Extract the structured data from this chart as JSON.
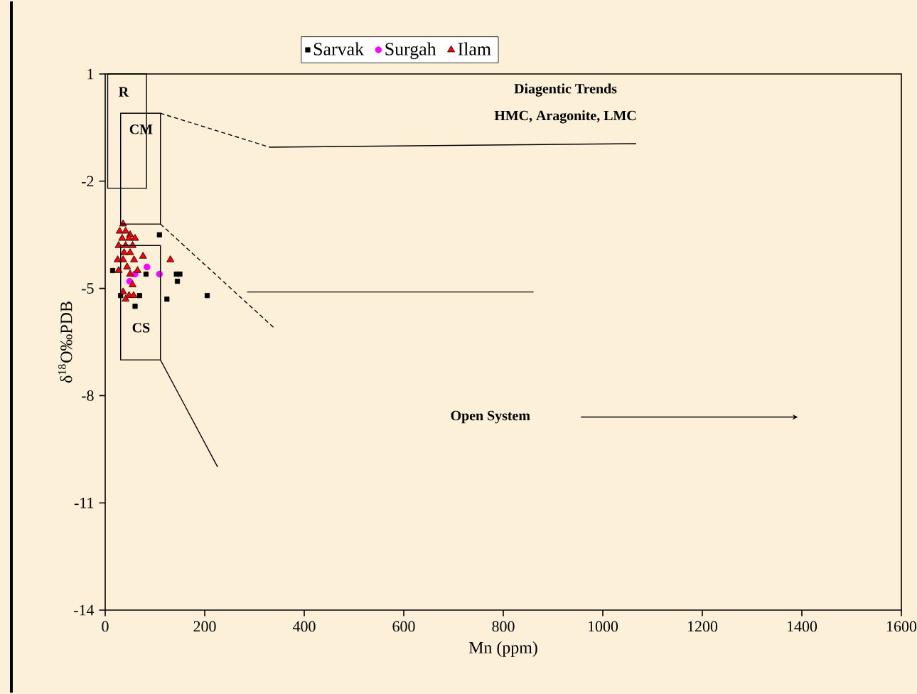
{
  "chart_data": {
    "type": "scatter",
    "xlabel": "Mn (ppm)",
    "ylabel": "δ$^{18}$O‰PDB",
    "xlim": [
      0,
      1600
    ],
    "xticks": [
      0,
      200,
      400,
      600,
      800,
      1000,
      1200,
      1400,
      1600
    ],
    "ylim": [
      -14,
      1
    ],
    "yticks": [
      -14,
      -11,
      -8,
      -5,
      -2,
      1
    ],
    "grid": false,
    "legend": "top",
    "series": [
      {
        "name": "Sarvak",
        "color": "#000000",
        "marker": "square",
        "x": [
          109,
          15,
          150,
          143,
          145,
          31,
          69,
          124,
          205,
          60,
          82
        ],
        "values": [
          -3.5,
          -4.5,
          -4.6,
          -4.6,
          -4.8,
          -5.2,
          -5.2,
          -5.3,
          -5.2,
          -5.5,
          -4.6
        ]
      },
      {
        "name": "Surgah",
        "color": "#ff00ff",
        "marker": "circle",
        "x": [
          84,
          109,
          60,
          49
        ],
        "values": [
          -4.4,
          -4.6,
          -4.6,
          -4.8
        ]
      },
      {
        "name": "Ilam",
        "color": "#ff0000",
        "marker": "triangle",
        "x": [
          36,
          29,
          41,
          50,
          34,
          48,
          60,
          27,
          41,
          55,
          38,
          50,
          76,
          25,
          36,
          58,
          27,
          44,
          50,
          65,
          131,
          55,
          36,
          48,
          57,
          41
        ],
        "values": [
          -3.2,
          -3.4,
          -3.4,
          -3.5,
          -3.6,
          -3.6,
          -3.6,
          -3.8,
          -3.8,
          -3.8,
          -4.0,
          -4.0,
          -4.1,
          -4.2,
          -4.2,
          -4.2,
          -4.5,
          -4.4,
          -4.6,
          -4.5,
          -4.2,
          -4.9,
          -5.1,
          -5.2,
          -5.2,
          -5.3
        ]
      },
      {
        "type": "line",
        "color": "#000000",
        "line_style": "dashed",
        "x": [
          111,
          331
        ],
        "values": [
          -0.1,
          -1.05
        ]
      },
      {
        "type": "line",
        "color": "#000000",
        "line_style": "solid",
        "x": [
          331,
          1067
        ],
        "values": [
          -1.05,
          -0.95
        ]
      },
      {
        "type": "line",
        "color": "#000000",
        "line_style": "dashed",
        "x": [
          111,
          339
        ],
        "values": [
          -3.2,
          -6.1
        ]
      },
      {
        "type": "line",
        "color": "#000000",
        "line_style": "solid",
        "x": [
          285,
          861
        ],
        "values": [
          -5.1,
          -5.1
        ]
      },
      {
        "type": "line",
        "color": "#000000",
        "line_style": "solid",
        "x": [
          111,
          226
        ],
        "values": [
          -7.0,
          -10.0
        ]
      }
    ],
    "annotations": [
      "R",
      "CM",
      "CS",
      "Diagentic Trends",
      "HMC, Aragonite, LMC",
      "Open System"
    ]
  }
}
